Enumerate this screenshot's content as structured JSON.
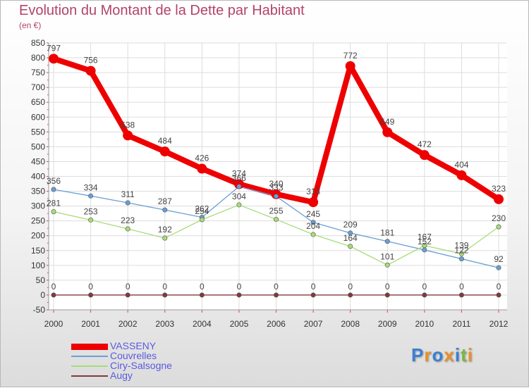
{
  "header": {
    "title": "Evolution du Montant de la Dette par Habitant",
    "unit": "(en €)"
  },
  "logo": {
    "text": "Proxiti",
    "letter_colors": [
      "#3a7fd5",
      "#e8902a",
      "#3a7fd5",
      "#e8902a",
      "#3a7fd5",
      "#7ab648",
      "#e8902a"
    ]
  },
  "chart_data": {
    "type": "line",
    "title": "Evolution du Montant de la Dette par Habitant",
    "subtitle": "(en €)",
    "x": [
      "2000",
      "2001",
      "2002",
      "2003",
      "2004",
      "2005",
      "2006",
      "2007",
      "2008",
      "2009",
      "2010",
      "2011",
      "2012"
    ],
    "ylim": [
      -50,
      850
    ],
    "yticks": [
      -50,
      0,
      50,
      100,
      150,
      200,
      250,
      300,
      350,
      400,
      450,
      500,
      550,
      600,
      650,
      700,
      750,
      800,
      850
    ],
    "grid": true,
    "legend_position": "bottom-left",
    "series": [
      {
        "name": "VASSENY",
        "color": "#ee0000",
        "values": [
          797,
          756,
          538,
          484,
          426,
          374,
          340,
          313,
          772,
          549,
          472,
          404,
          323
        ]
      },
      {
        "name": "Couvrelles",
        "color": "#6a9fd4",
        "values": [
          356,
          334,
          311,
          287,
          262,
          366,
          333,
          245,
          209,
          181,
          152,
          122,
          92
        ]
      },
      {
        "name": "Ciry-Salsogne",
        "color": "#a8dc78",
        "values": [
          281,
          253,
          223,
          192,
          254,
          304,
          255,
          204,
          164,
          101,
          167,
          139,
          230
        ]
      },
      {
        "name": "Augy",
        "color": "#803a3a",
        "values": [
          0,
          0,
          0,
          0,
          0,
          0,
          0,
          0,
          0,
          0,
          0,
          0,
          0
        ]
      }
    ]
  }
}
